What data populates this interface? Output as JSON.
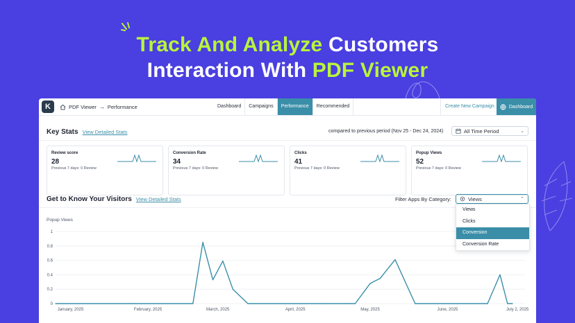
{
  "hero": {
    "line1_accent": "Track And Analyze",
    "line1_rest": " Customers",
    "line2_lead": "Interaction With ",
    "line2_accent": "PDF Viewer"
  },
  "app": {
    "logo_letter": "K",
    "breadcrumb": {
      "home_icon": "home-icon",
      "item1": "PDF Viewer",
      "separator": "→",
      "item2": "Performance"
    },
    "tabs": [
      {
        "label": "Dashboard",
        "active": false
      },
      {
        "label": "Campaigns",
        "active": false
      },
      {
        "label": "Performance",
        "active": true
      },
      {
        "label": "Recommended",
        "active": false
      }
    ],
    "create_button": "Create New Campaign",
    "dashboard_button": "Dashboard",
    "dashboard_icon": "globe-icon"
  },
  "key_stats": {
    "title": "Key Stats",
    "link": "View Detailed Stats",
    "compare_text": "compared to previous period (Nov 25 - Dec 24, 2024)",
    "period_icon": "calendar-icon",
    "period_value": "All Time Period"
  },
  "cards": [
    {
      "label": "Review score",
      "value": "28",
      "previous": "Previous 7 days: 0 Review"
    },
    {
      "label": "Conversion Rate",
      "value": "34",
      "previous": "Previous 7 days: 0 Review"
    },
    {
      "label": "Clicks",
      "value": "41",
      "previous": "Previous 7 days: 0 Review"
    },
    {
      "label": "Popup Views",
      "value": "52",
      "previous": "Previous 7 days: 0 Review"
    }
  ],
  "visitors": {
    "title": "Get to Know Your Visitors",
    "link": "View Detailed Stats",
    "filter_label": "Filter Apps By Category:",
    "filter_value": "Views",
    "filter_icon": "eye-icon",
    "dropdown_options": [
      {
        "label": "Views",
        "selected": false
      },
      {
        "label": "Clicks",
        "selected": false
      },
      {
        "label": "Conversion",
        "selected": true
      },
      {
        "label": "Conversion Rate",
        "selected": false
      }
    ]
  },
  "chart_data": {
    "type": "line",
    "title": "",
    "ylabel": "Popup Views",
    "xlabel": "",
    "ylim": [
      0,
      1
    ],
    "yticks": [
      "0",
      "0.2",
      "0.4",
      "0.6",
      "0.8",
      "1"
    ],
    "xtick_labels": [
      "January, 2025",
      "February, 2025",
      "March, 2025",
      "April, 2025",
      "May, 2025",
      "June, 2025",
      "July 2, 2025"
    ],
    "grid": true,
    "color": "#3a8ea8",
    "series": [
      {
        "x": [
          "2025-01-01",
          "2025-02-01",
          "2025-02-25",
          "2025-03-01",
          "2025-03-05",
          "2025-03-09",
          "2025-03-13",
          "2025-03-19",
          "2025-04-01",
          "2025-04-19",
          "2025-04-27",
          "2025-05-01",
          "2025-05-07",
          "2025-05-11",
          "2025-05-17",
          "2025-05-25",
          "2025-06-01",
          "2025-06-23",
          "2025-06-28",
          "2025-07-01",
          "2025-07-03"
        ],
        "y": [
          0,
          0,
          0,
          0.85,
          0.33,
          0.59,
          0.2,
          0,
          0,
          0,
          0,
          0,
          0.28,
          0.35,
          0.61,
          0,
          0,
          0,
          0.4,
          0,
          0
        ]
      }
    ]
  }
}
